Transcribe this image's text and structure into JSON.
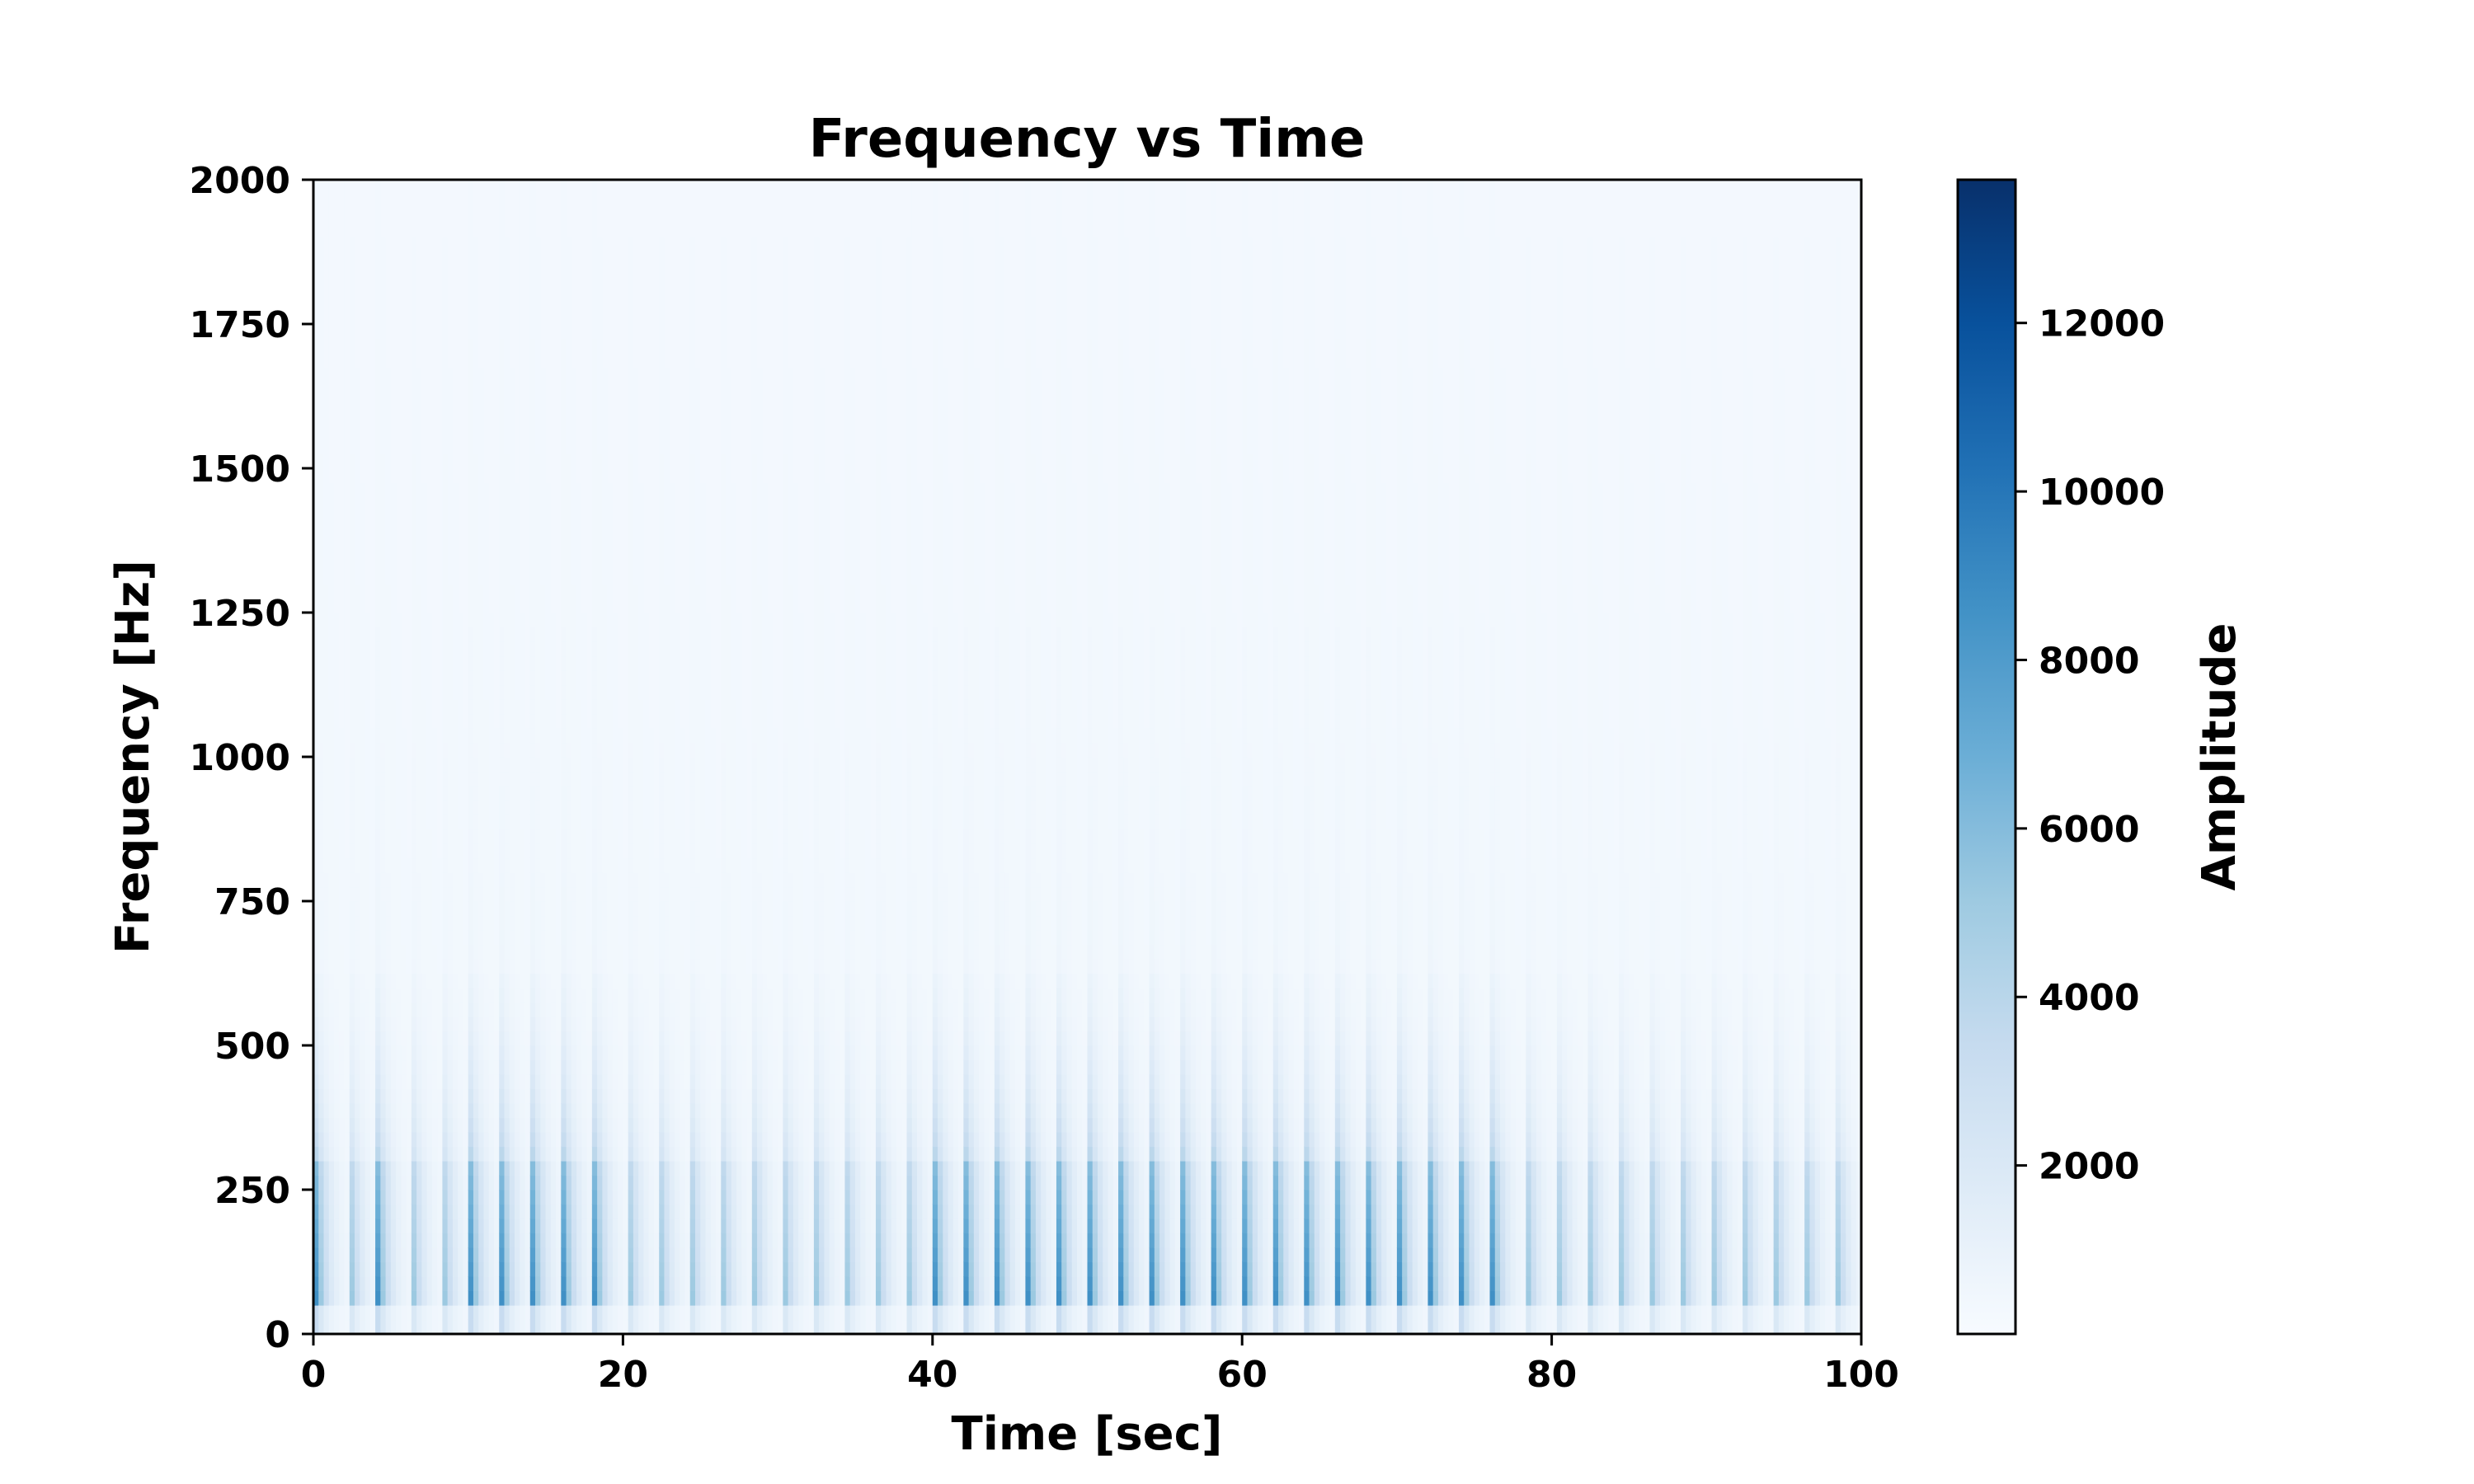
{
  "chart_data": {
    "type": "heatmap",
    "title": "Frequency vs Time",
    "xlabel": "Time [sec]",
    "ylabel": "Frequency [Hz]",
    "xlim": [
      0,
      100
    ],
    "ylim": [
      0,
      2000
    ],
    "xticks": [
      0,
      20,
      40,
      60,
      80,
      100
    ],
    "xtick_labels": [
      "0",
      "20",
      "40",
      "60",
      "80",
      "100"
    ],
    "yticks": [
      0,
      250,
      500,
      750,
      1000,
      1250,
      1500,
      1750,
      2000
    ],
    "ytick_labels": [
      "0",
      "250",
      "500",
      "750",
      "1000",
      "1250",
      "1500",
      "1750",
      "2000"
    ],
    "colormap": "Blues",
    "grid": false,
    "colorbar": {
      "label": "Amplitude",
      "range": [
        0,
        13700
      ],
      "ticks": [
        2000,
        4000,
        6000,
        8000,
        10000,
        12000
      ],
      "tick_labels": [
        "2000",
        "4000",
        "6000",
        "8000",
        "10000",
        "12000"
      ]
    },
    "pattern": {
      "pulse_period_sec": 2,
      "pulse_count": 50,
      "strong_band_hz": [
        50,
        300
      ],
      "peak_amplitude": 8500,
      "harmonic_extent_hz": 620,
      "background_amplitude": 300
    }
  }
}
